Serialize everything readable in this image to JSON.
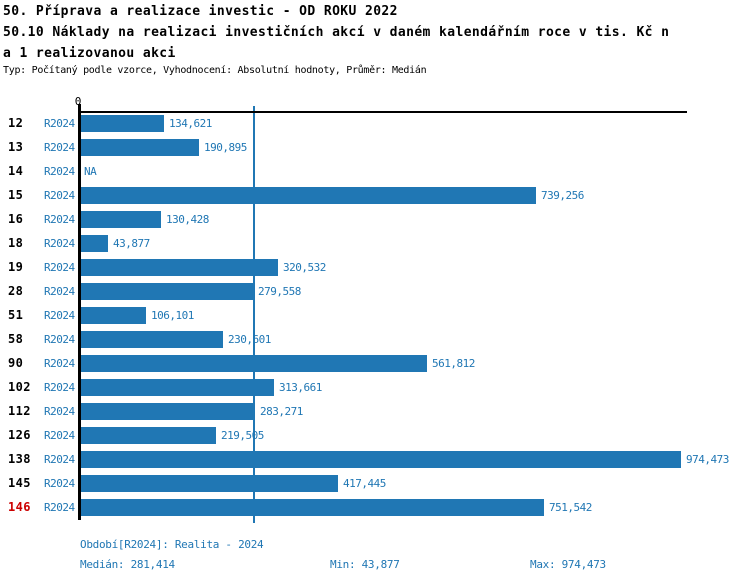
{
  "header": {
    "title_line1": "50. Příprava a realizace investic - OD ROKU 2022",
    "title_line2": "50.10 Náklady na realizaci investičních akcí v daném kalendářním roce v tis. Kč n",
    "title_line3": "a 1 realizovanou akci",
    "meta_line": "Typ: Počítaný podle vzorce, Vyhodnocení: Absolutní hodnoty, Průměr: Medián"
  },
  "chart_data": {
    "type": "bar",
    "orientation": "horizontal",
    "axis_zero_label": "0",
    "xlim": [
      0,
      974473
    ],
    "median_value": 281414,
    "grid": false,
    "legend": "none",
    "series_name": "R2024",
    "categories": [
      "12",
      "13",
      "14",
      "15",
      "16",
      "18",
      "19",
      "28",
      "51",
      "58",
      "90",
      "102",
      "112",
      "126",
      "138",
      "145",
      "146"
    ],
    "rows": [
      {
        "id": "12",
        "series": "R2024",
        "value": 134621,
        "label": "134,621",
        "highlighted": false
      },
      {
        "id": "13",
        "series": "R2024",
        "value": 190895,
        "label": "190,895",
        "highlighted": false
      },
      {
        "id": "14",
        "series": "R2024",
        "value": null,
        "label": "NA",
        "highlighted": false
      },
      {
        "id": "15",
        "series": "R2024",
        "value": 739256,
        "label": "739,256",
        "highlighted": false
      },
      {
        "id": "16",
        "series": "R2024",
        "value": 130428,
        "label": "130,428",
        "highlighted": false
      },
      {
        "id": "18",
        "series": "R2024",
        "value": 43877,
        "label": "43,877",
        "highlighted": false
      },
      {
        "id": "19",
        "series": "R2024",
        "value": 320532,
        "label": "320,532",
        "highlighted": false
      },
      {
        "id": "28",
        "series": "R2024",
        "value": 279558,
        "label": "279,558",
        "highlighted": false
      },
      {
        "id": "51",
        "series": "R2024",
        "value": 106101,
        "label": "106,101",
        "highlighted": false
      },
      {
        "id": "58",
        "series": "R2024",
        "value": 230601,
        "label": "230,601",
        "highlighted": false
      },
      {
        "id": "90",
        "series": "R2024",
        "value": 561812,
        "label": "561,812",
        "highlighted": false
      },
      {
        "id": "102",
        "series": "R2024",
        "value": 313661,
        "label": "313,661",
        "highlighted": false
      },
      {
        "id": "112",
        "series": "R2024",
        "value": 283271,
        "label": "283,271",
        "highlighted": false
      },
      {
        "id": "126",
        "series": "R2024",
        "value": 219505,
        "label": "219,505",
        "highlighted": false
      },
      {
        "id": "138",
        "series": "R2024",
        "value": 974473,
        "label": "974,473",
        "highlighted": false
      },
      {
        "id": "145",
        "series": "R2024",
        "value": 417445,
        "label": "417,445",
        "highlighted": false
      },
      {
        "id": "146",
        "series": "R2024",
        "value": 751542,
        "label": "751,542",
        "highlighted": true
      }
    ],
    "colors": {
      "bar": "#2077b4",
      "value_text": "#2077b4",
      "median_line": "#2077b4",
      "highlight_text": "#cc0000",
      "axis": "#000000"
    }
  },
  "footer": {
    "period_label": "Období[R2024]: Realita - 2024",
    "median_label": "Medián: 281,414",
    "min_label": "Min: 43,877",
    "max_label": "Max: 974,473"
  }
}
